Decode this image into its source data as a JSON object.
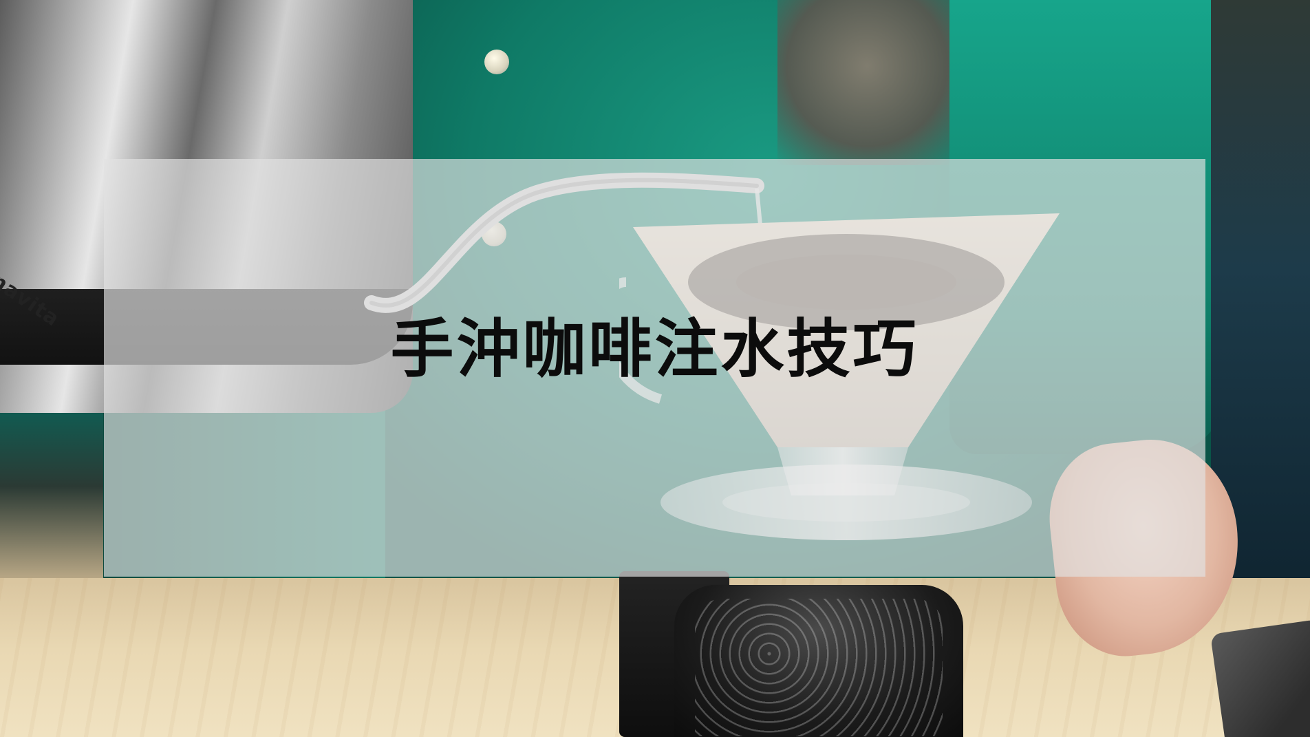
{
  "overlay": {
    "title": "手沖咖啡注水技巧"
  },
  "background": {
    "kettle_brand": "navita"
  },
  "colors": {
    "panel": "#e2e2e2",
    "shirt": "#10735f",
    "table": "#e9d8b3",
    "title_text": "#0c0c0c"
  }
}
